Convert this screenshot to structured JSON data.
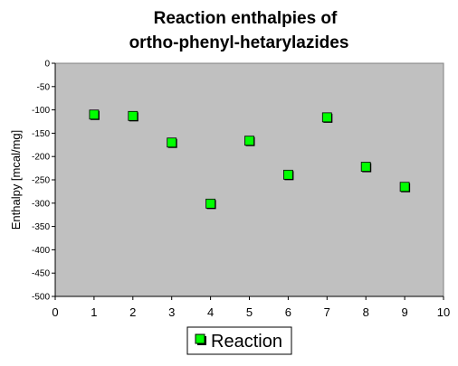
{
  "chart_data": {
    "type": "scatter",
    "title": "Reaction enthalpies of ortho-phenyl-hetarylazides",
    "title_lines": [
      "Reaction enthalpies of",
      "ortho-phenyl-hetarylazides"
    ],
    "ylabel": "Enthalpy [mcal/mg]",
    "xlabel": "",
    "xlim": [
      0,
      10
    ],
    "ylim": [
      -500,
      0
    ],
    "x_ticks": [
      0,
      1,
      2,
      3,
      4,
      5,
      6,
      7,
      8,
      9,
      10
    ],
    "y_ticks": [
      0,
      -50,
      -100,
      -150,
      -200,
      -250,
      -300,
      -350,
      -400,
      -450,
      -500
    ],
    "grid": false,
    "plot_background": "#c0c0c0",
    "legend_placement": "bottom",
    "series": [
      {
        "name": "Reaction",
        "color": "#00ff00",
        "marker": "square",
        "x": [
          1,
          2,
          3,
          4,
          5,
          6,
          7,
          8,
          9
        ],
        "y": [
          -110,
          -113,
          -170,
          -301,
          -166,
          -239,
          -116,
          -222,
          -265
        ]
      }
    ]
  }
}
